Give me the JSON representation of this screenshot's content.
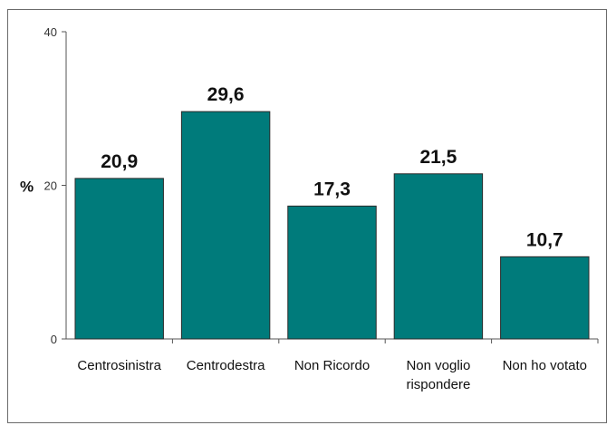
{
  "chart_data": {
    "type": "bar",
    "categories": [
      "Centrosinistra",
      "Centrodestra",
      "Non Ricordo",
      "Non voglio rispondere",
      "Non ho votato"
    ],
    "category_lines": [
      [
        "Centrosinistra"
      ],
      [
        "Centrodestra"
      ],
      [
        "Non Ricordo"
      ],
      [
        "Non voglio",
        "rispondere"
      ],
      [
        "Non ho votato"
      ]
    ],
    "values": [
      20.9,
      29.6,
      17.3,
      21.5,
      10.7
    ],
    "value_labels": [
      "20,9",
      "29,6",
      "17,3",
      "21,5",
      "10,7"
    ],
    "ylabel": "%",
    "ylim": [
      0,
      40
    ],
    "yticks": [
      0,
      20,
      40
    ],
    "bar_color": "#007b7b",
    "grid": false,
    "legend": "none"
  }
}
